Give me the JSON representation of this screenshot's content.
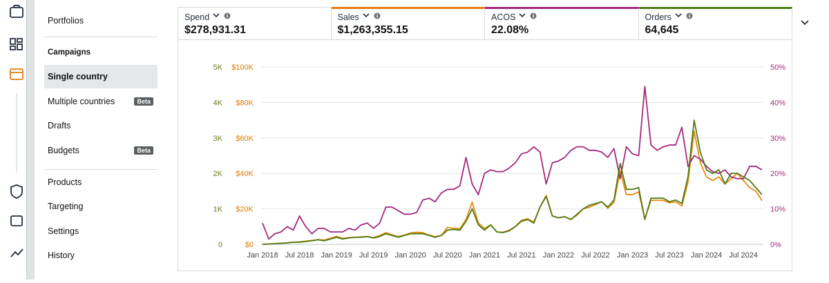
{
  "nav": {
    "top": [
      "Portfolios"
    ],
    "campaigns": {
      "heading": "Campaigns",
      "items": [
        {
          "label": "Single country",
          "selected": true
        },
        {
          "label": "Multiple countries",
          "badge": "Beta"
        },
        {
          "label": "Drafts"
        },
        {
          "label": "Budgets",
          "badge": "Beta"
        }
      ]
    },
    "bottom": [
      "Products",
      "Targeting",
      "Settings",
      "History"
    ]
  },
  "metrics": [
    {
      "name": "Spend",
      "value": "$278,931.31"
    },
    {
      "name": "Sales",
      "value": "$1,263,355.15",
      "color": "#e47911"
    },
    {
      "name": "ACOS",
      "value": "22.08%",
      "color": "#a3287c"
    },
    {
      "name": "Orders",
      "value": "64,645",
      "color": "#4f7a14"
    }
  ],
  "chart_data": {
    "type": "line",
    "x": [
      "2018-01",
      "2018-02",
      "2018-03",
      "2018-04",
      "2018-05",
      "2018-06",
      "2018-07",
      "2018-08",
      "2018-09",
      "2018-10",
      "2018-11",
      "2018-12",
      "2019-01",
      "2019-02",
      "2019-03",
      "2019-04",
      "2019-05",
      "2019-06",
      "2019-07",
      "2019-08",
      "2019-09",
      "2019-10",
      "2019-11",
      "2019-12",
      "2020-01",
      "2020-02",
      "2020-03",
      "2020-04",
      "2020-05",
      "2020-06",
      "2020-07",
      "2020-08",
      "2020-09",
      "2020-10",
      "2020-11",
      "2020-12",
      "2021-01",
      "2021-02",
      "2021-03",
      "2021-04",
      "2021-05",
      "2021-06",
      "2021-07",
      "2021-08",
      "2021-09",
      "2021-10",
      "2021-11",
      "2021-12",
      "2022-01",
      "2022-02",
      "2022-03",
      "2022-04",
      "2022-05",
      "2022-06",
      "2022-07",
      "2022-08",
      "2022-09",
      "2022-10",
      "2022-11",
      "2022-12",
      "2023-01",
      "2023-02",
      "2023-03",
      "2023-04",
      "2023-05",
      "2023-06",
      "2023-07",
      "2023-08",
      "2023-09",
      "2023-10",
      "2023-11",
      "2023-12",
      "2024-01",
      "2024-02",
      "2024-03",
      "2024-04",
      "2024-05",
      "2024-06",
      "2024-07",
      "2024-08",
      "2024-09",
      "2024-10"
    ],
    "xticks": [
      {
        "value": "2018-01",
        "label": "Jan 2018"
      },
      {
        "value": "2018-07",
        "label": "Jul 2018"
      },
      {
        "value": "2019-01",
        "label": "Jan 2019"
      },
      {
        "value": "2019-07",
        "label": "Jul 2019"
      },
      {
        "value": "2020-01",
        "label": "Jan 2020"
      },
      {
        "value": "2020-07",
        "label": "Jul 2020"
      },
      {
        "value": "2021-01",
        "label": "Jan 2021"
      },
      {
        "value": "2021-07",
        "label": "Jul 2021"
      },
      {
        "value": "2022-01",
        "label": "Jan 2022"
      },
      {
        "value": "2022-07",
        "label": "Jul 2022"
      },
      {
        "value": "2023-01",
        "label": "Jan 2023"
      },
      {
        "value": "2023-07",
        "label": "Jul 2023"
      },
      {
        "value": "2024-01",
        "label": "Jan 2024"
      },
      {
        "value": "2024-07",
        "label": "Jul 2024"
      }
    ],
    "ylim": [
      0,
      100000
    ],
    "yticks": [
      {
        "value": 0,
        "label": "$0"
      },
      {
        "value": 20000,
        "label": "$20K"
      },
      {
        "value": 40000,
        "label": "$40K"
      },
      {
        "value": 60000,
        "label": "$60K"
      },
      {
        "value": 80000,
        "label": "$80K"
      },
      {
        "value": 100000,
        "label": "$100K"
      }
    ],
    "ytick_color": "#e07b00",
    "y2lim": [
      0,
      50
    ],
    "y2ticks": [
      {
        "value": 0,
        "label": "0%"
      },
      {
        "value": 10,
        "label": "10%"
      },
      {
        "value": 20,
        "label": "20%"
      },
      {
        "value": 30,
        "label": "30%"
      },
      {
        "value": 40,
        "label": "40%"
      },
      {
        "value": 50,
        "label": "50%"
      }
    ],
    "y2tick_color": "#a3287c",
    "y3lim": [
      0,
      5000
    ],
    "y3ticks": [
      0,
      {
        "value": 1000,
        "label": "1K"
      },
      {
        "value": 2000,
        "label": "2K"
      },
      {
        "value": 3000,
        "label": "3K"
      },
      {
        "value": 4000,
        "label": "4K"
      },
      {
        "value": 5000,
        "label": "5K"
      }
    ],
    "y3tick_color": "#6b7a1a",
    "grid": true,
    "series": [
      {
        "color": "#e8890c",
        "axis": "y",
        "values": [
          0,
          200,
          400,
          600,
          800,
          1200,
          1400,
          1800,
          2200,
          2600,
          2400,
          3400,
          4500,
          3400,
          3800,
          4000,
          4200,
          4400,
          3800,
          5000,
          6600,
          5400,
          4400,
          5200,
          6400,
          6800,
          6600,
          5200,
          4400,
          5000,
          9600,
          9000,
          8800,
          14000,
          23800,
          12000,
          9000,
          11000,
          7000,
          6800,
          8000,
          10000,
          13600,
          14400,
          12600,
          21000,
          27600,
          16000,
          15000,
          15600,
          14200,
          16400,
          20000,
          21000,
          22400,
          24000,
          20400,
          23600,
          41600,
          28000,
          28000,
          29600,
          14400,
          24800,
          24800,
          24800,
          23400,
          24000,
          21600,
          35000,
          63800,
          46000,
          38000,
          36000,
          38000,
          34000,
          37000,
          40000,
          36000,
          32000,
          30000,
          24600
        ]
      },
      {
        "color": "#a3287c",
        "axis": "y2",
        "values": [
          6,
          1.5,
          3,
          3.5,
          5,
          4,
          8,
          5,
          3,
          4.5,
          4.5,
          3.5,
          3.5,
          3.5,
          4.5,
          4,
          5.5,
          6,
          4.5,
          6,
          10.5,
          10.5,
          9.5,
          8.5,
          8.5,
          9,
          12.5,
          13,
          12,
          14.5,
          15.5,
          15.5,
          16.5,
          24.5,
          17,
          14,
          20,
          21,
          20.5,
          20.5,
          21.5,
          23,
          25.5,
          26,
          27.5,
          26,
          17,
          23,
          23.5,
          24.5,
          26.5,
          27.5,
          27.5,
          26.5,
          26.5,
          26,
          24.5,
          27,
          18.5,
          27.5,
          25.5,
          25,
          44.5,
          28,
          26.5,
          27.5,
          28,
          28,
          33,
          22,
          25,
          24,
          22,
          20.5,
          20,
          21,
          19,
          18.5,
          18.5,
          22,
          22,
          21
        ]
      },
      {
        "color": "#4f7a14",
        "axis": "y3",
        "values": [
          0,
          10,
          20,
          30,
          40,
          60,
          60,
          80,
          100,
          130,
          100,
          150,
          200,
          150,
          180,
          200,
          200,
          220,
          180,
          220,
          300,
          250,
          200,
          250,
          300,
          300,
          300,
          250,
          200,
          250,
          400,
          420,
          400,
          650,
          1000,
          550,
          400,
          550,
          350,
          330,
          380,
          500,
          650,
          700,
          600,
          1050,
          1350,
          800,
          750,
          780,
          700,
          850,
          1000,
          1100,
          1150,
          1200,
          1050,
          1250,
          2280,
          1550,
          1550,
          1600,
          700,
          1300,
          1300,
          1300,
          1200,
          1250,
          1150,
          1900,
          3500,
          2600,
          2100,
          2000,
          2100,
          1700,
          2000,
          2000,
          1900,
          1800,
          1600,
          1400
        ]
      }
    ]
  }
}
